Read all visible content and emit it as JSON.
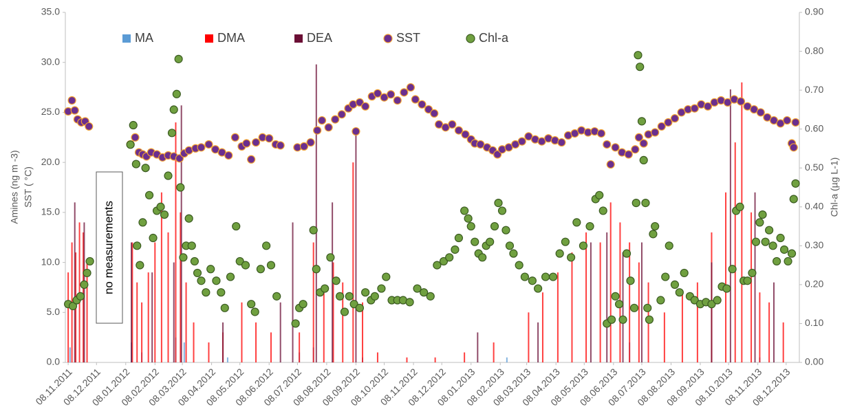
{
  "chart_data": {
    "type": "combo",
    "y_label": [
      "Amines (ng m -3)",
      "SST ( °C)"
    ],
    "y2_label": "Chl-a (µg L-1)",
    "annotation": "no measurements",
    "xlim": [
      "05.11.2011",
      "22.12.2013"
    ],
    "xticks": [
      "08.11.2011",
      "08.12.2011",
      "08.01.2012",
      "08.02.2012",
      "08.03.2012",
      "08.04.2012",
      "08.05.2012",
      "08.06.2012",
      "08.07.2012",
      "08.08.2012",
      "08.09.2012",
      "08.10.2012",
      "08.11.2012",
      "08.12.2012",
      "08.01.2013",
      "08.02.2013",
      "08.03.2013",
      "08.04.2013",
      "08.05.2013",
      "08.06.2013",
      "08.07.2013",
      "08.08.2013",
      "08.09.2013",
      "08.10.2013",
      "08.11.2013",
      "08.12.2013"
    ],
    "ylim": [
      0,
      35
    ],
    "yticks": [
      {
        "value": 0,
        "label": "0.0"
      },
      {
        "value": 5,
        "label": "5.0"
      },
      {
        "value": 10,
        "label": "10.0"
      },
      {
        "value": 15,
        "label": "15.0"
      },
      {
        "value": 20,
        "label": "20.0"
      },
      {
        "value": 25,
        "label": "25.0"
      },
      {
        "value": 30,
        "label": "30.0"
      },
      {
        "value": 35,
        "label": "35.0"
      }
    ],
    "y2lim": [
      0,
      0.9
    ],
    "y2ticks": [
      {
        "value": 0,
        "label": "0.00"
      },
      {
        "value": 0.1,
        "label": "0.10"
      },
      {
        "value": 0.2,
        "label": "0.20"
      },
      {
        "value": 0.3,
        "label": "0.30"
      },
      {
        "value": 0.4,
        "label": "0.40"
      },
      {
        "value": 0.5,
        "label": "0.50"
      },
      {
        "value": 0.6,
        "label": "0.60"
      },
      {
        "value": 0.7,
        "label": "0.70"
      },
      {
        "value": 0.8,
        "label": "0.80"
      },
      {
        "value": 0.9,
        "label": "0.90"
      }
    ],
    "series": [
      {
        "name": "MA",
        "type": "bar",
        "color": "#5b9bd5",
        "x": [
          "10.11.2011",
          "14.01.2012",
          "25.01.2012",
          "01.03.2012",
          "10.03.2012",
          "25.04.2012",
          "10.07.2012",
          "25.07.2012",
          "15.09.2012",
          "15.02.2013",
          "25.06.2013",
          "10.11.2013"
        ],
        "values": [
          1.5,
          2,
          1,
          2.5,
          2,
          0.5,
          1,
          1.5,
          0.5,
          0.5,
          2,
          0.5
        ]
      },
      {
        "name": "DMA",
        "type": "bar",
        "color": "#ff0000",
        "x": [
          "08.11.2011",
          "12.11.2011",
          "16.11.2011",
          "20.11.2011",
          "24.11.2011",
          "28.11.2011",
          "15.01.2012",
          "20.01.2012",
          "25.01.2012",
          "01.02.2012",
          "08.02.2012",
          "15.02.2012",
          "22.02.2012",
          "01.03.2012",
          "06.03.2012",
          "12.03.2012",
          "20.03.2012",
          "05.04.2012",
          "20.04.2012",
          "10.05.2012",
          "25.05.2012",
          "10.06.2012",
          "10.07.2012",
          "25.07.2012",
          "05.08.2012",
          "15.08.2012",
          "25.08.2012",
          "05.09.2012",
          "15.09.2012",
          "01.10.2012",
          "01.11.2012",
          "01.12.2012",
          "01.01.2013",
          "01.02.2013",
          "10.03.2013",
          "25.03.2013",
          "10.04.2013",
          "25.04.2013",
          "10.05.2013",
          "25.05.2013",
          "05.06.2013",
          "15.06.2013",
          "25.06.2013",
          "05.07.2013",
          "15.07.2013",
          "01.08.2013",
          "20.08.2013",
          "05.09.2013",
          "20.09.2013",
          "05.10.2013",
          "15.10.2013",
          "22.10.2013",
          "01.11.2013",
          "10.11.2013",
          "20.11.2013",
          "05.12.2013"
        ],
        "values": [
          9,
          12,
          11,
          14,
          13,
          10,
          12,
          8,
          6,
          9,
          12,
          17,
          13,
          24,
          15,
          8,
          4,
          2,
          3,
          6,
          4,
          3,
          3,
          12,
          7,
          10,
          8,
          20,
          6,
          1,
          0.5,
          0.5,
          1,
          2,
          5,
          7,
          9,
          11,
          13,
          12,
          16,
          14,
          12,
          10,
          8,
          5,
          7,
          8,
          13,
          17,
          22,
          28,
          15,
          7,
          6,
          4
        ]
      },
      {
        "name": "DEA",
        "type": "bar",
        "color": "#6b0f35",
        "x": [
          "15.11.2011",
          "25.11.2011",
          "14.01.2012",
          "05.02.2012",
          "28.02.2012",
          "07.03.2012",
          "20.04.2012",
          "20.06.2012",
          "03.07.2012",
          "28.07.2012",
          "14.08.2012",
          "08.09.2012",
          "15.01.2013",
          "20.03.2013",
          "15.05.2013",
          "01.06.2013",
          "18.06.2013",
          "08.07.2013",
          "20.09.2013",
          "10.10.2013",
          "05.11.2013",
          "25.11.2013"
        ],
        "values": [
          16,
          14,
          12,
          9,
          10,
          25.7,
          4,
          6,
          14,
          29.8,
          16,
          23.5,
          3,
          4,
          12,
          13,
          11,
          12,
          10,
          27.3,
          17,
          8
        ]
      },
      {
        "name": "SST",
        "type": "scatter",
        "color": "#6b2f8e",
        "edge": "#f0a030",
        "x": [
          "08.11.2011",
          "12.11.2011",
          "15.11.2011",
          "18.11.2011",
          "22.11.2011",
          "26.11.2011",
          "30.11.2011",
          "13.01.2012",
          "18.01.2012",
          "22.01.2012",
          "26.01.2012",
          "30.01.2012",
          "04.02.2012",
          "10.02.2012",
          "16.02.2012",
          "22.02.2012",
          "28.02.2012",
          "05.03.2012",
          "10.03.2012",
          "15.03.2012",
          "22.03.2012",
          "28.03.2012",
          "05.04.2012",
          "12.04.2012",
          "19.04.2012",
          "26.04.2012",
          "03.05.2012",
          "10.05.2012",
          "15.05.2012",
          "20.05.2012",
          "25.05.2012",
          "01.06.2012",
          "08.06.2012",
          "15.06.2012",
          "20.06.2012",
          "08.07.2012",
          "15.07.2012",
          "22.07.2012",
          "29.07.2012",
          "03.08.2012",
          "10.08.2012",
          "17.08.2012",
          "24.08.2012",
          "31.08.2012",
          "05.09.2012",
          "08.09.2012",
          "12.09.2012",
          "18.09.2012",
          "25.09.2012",
          "01.10.2012",
          "08.10.2012",
          "15.10.2012",
          "22.10.2012",
          "29.10.2012",
          "05.11.2012",
          "10.11.2012",
          "17.11.2012",
          "24.11.2012",
          "30.11.2012",
          "05.12.2012",
          "12.12.2012",
          "19.12.2012",
          "26.12.2012",
          "02.01.2013",
          "08.01.2013",
          "12.01.2013",
          "18.01.2013",
          "25.01.2013",
          "31.01.2013",
          "05.02.2013",
          "10.02.2013",
          "17.02.2013",
          "24.02.2013",
          "03.03.2013",
          "10.03.2013",
          "17.03.2013",
          "24.03.2013",
          "31.03.2013",
          "07.04.2013",
          "14.04.2013",
          "21.04.2013",
          "28.04.2013",
          "05.05.2013",
          "12.05.2013",
          "19.05.2013",
          "26.05.2013",
          "01.06.2013",
          "05.06.2013",
          "10.06.2013",
          "17.06.2013",
          "24.06.2013",
          "01.07.2013",
          "05.07.2013",
          "10.07.2013",
          "15.07.2013",
          "22.07.2013",
          "29.07.2013",
          "05.08.2013",
          "12.08.2013",
          "19.08.2013",
          "26.08.2013",
          "02.09.2013",
          "09.09.2013",
          "16.09.2013",
          "23.09.2013",
          "30.09.2013",
          "07.10.2013",
          "14.10.2013",
          "21.10.2013",
          "28.10.2013",
          "04.11.2013",
          "11.11.2013",
          "18.11.2013",
          "25.11.2013",
          "02.12.2013",
          "09.12.2013",
          "14.12.2013",
          "16.12.2013",
          "18.12.2013"
        ],
        "values": [
          25.1,
          26.2,
          25.2,
          24.3,
          24.0,
          24.1,
          23.6,
          21.8,
          22.5,
          21.0,
          20.8,
          20.6,
          21.0,
          20.8,
          20.5,
          20.7,
          20.6,
          20.4,
          20.9,
          21.2,
          21.4,
          21.5,
          21.8,
          21.3,
          21.0,
          20.7,
          22.5,
          21.6,
          21.9,
          20.3,
          22.0,
          22.5,
          22.4,
          21.8,
          21.7,
          21.5,
          21.6,
          22.0,
          23.2,
          24.2,
          23.5,
          24.3,
          24.8,
          25.4,
          25.8,
          23.1,
          26.0,
          25.6,
          26.6,
          26.9,
          26.5,
          26.8,
          26.2,
          27.0,
          27.5,
          26.3,
          25.8,
          25.3,
          24.9,
          23.8,
          23.5,
          23.8,
          23.2,
          22.8,
          22.3,
          21.9,
          21.8,
          21.5,
          21.2,
          20.8,
          21.3,
          21.5,
          21.8,
          22.1,
          22.6,
          22.3,
          22.1,
          22.4,
          22.2,
          22.0,
          22.7,
          22.9,
          23.2,
          23.0,
          23.1,
          22.9,
          21.8,
          19.8,
          21.5,
          21.0,
          20.8,
          21.3,
          22.5,
          21.9,
          22.8,
          23.0,
          23.6,
          24.0,
          24.4,
          25.0,
          25.3,
          25.4,
          25.8,
          25.6,
          26.0,
          26.2,
          26.0,
          26.3,
          26.1,
          25.6,
          25.3,
          25.0,
          24.5,
          24.2,
          23.9,
          24.2,
          21.9,
          21.5,
          24.0
        ]
      },
      {
        "name": "Chl-a",
        "type": "scatter",
        "axis": "y2",
        "color": "#70a040",
        "edge": "#3a5a20",
        "x": [
          "08.11.2011",
          "13.11.2011",
          "17.11.2011",
          "21.11.2011",
          "25.11.2011",
          "28.11.2011",
          "01.12.2011",
          "13.01.2012",
          "16.01.2012",
          "19.01.2012",
          "20.01.2012",
          "23.01.2012",
          "26.01.2012",
          "29.01.2012",
          "02.02.2012",
          "06.02.2012",
          "10.02.2012",
          "14.02.2012",
          "18.02.2012",
          "22.02.2012",
          "26.02.2012",
          "28.02.2012",
          "02.03.2012",
          "04.03.2012",
          "06.03.2012",
          "09.03.2012",
          "12.03.2012",
          "15.03.2012",
          "18.03.2012",
          "21.03.2012",
          "24.03.2012",
          "28.03.2012",
          "02.04.2012",
          "07.04.2012",
          "13.04.2012",
          "18.04.2012",
          "22.04.2012",
          "28.04.2012",
          "04.05.2012",
          "08.05.2012",
          "14.05.2012",
          "20.05.2012",
          "24.05.2012",
          "30.05.2012",
          "05.06.2012",
          "10.06.2012",
          "16.06.2012",
          "06.07.2012",
          "10.07.2012",
          "14.07.2012",
          "25.07.2012",
          "28.07.2012",
          "01.08.2012",
          "06.08.2012",
          "12.08.2012",
          "18.08.2012",
          "22.08.2012",
          "27.08.2012",
          "01.09.2012",
          "06.09.2012",
          "12.09.2012",
          "18.09.2012",
          "24.09.2012",
          "28.09.2012",
          "05.10.2012",
          "10.10.2012",
          "16.10.2012",
          "22.10.2012",
          "28.10.2012",
          "04.11.2012",
          "12.11.2012",
          "19.11.2012",
          "26.11.2012",
          "03.12.2012",
          "10.12.2012",
          "16.12.2012",
          "22.12.2012",
          "26.12.2012",
          "01.01.2013",
          "05.01.2013",
          "08.01.2013",
          "12.01.2013",
          "16.01.2013",
          "20.01.2013",
          "24.01.2013",
          "28.01.2013",
          "02.02.2013",
          "06.02.2013",
          "10.02.2013",
          "14.02.2013",
          "18.02.2013",
          "22.02.2013",
          "28.02.2013",
          "06.03.2013",
          "14.03.2013",
          "20.03.2013",
          "28.03.2013",
          "05.04.2013",
          "12.04.2013",
          "18.04.2013",
          "24.04.2013",
          "30.04.2013",
          "07.05.2013",
          "14.05.2013",
          "20.05.2013",
          "24.05.2013",
          "28.05.2013",
          "01.06.2013",
          "06.06.2013",
          "10.06.2013",
          "14.06.2013",
          "18.06.2013",
          "22.06.2013",
          "26.06.2013",
          "30.06.2013",
          "02.07.2013",
          "04.07.2013",
          "06.07.2013",
          "08.07.2013",
          "10.07.2013",
          "12.07.2013",
          "14.07.2013",
          "16.07.2013",
          "20.07.2013",
          "22.07.2013",
          "28.07.2013",
          "02.08.2013",
          "06.08.2013",
          "12.08.2013",
          "17.08.2013",
          "22.08.2013",
          "28.08.2013",
          "02.09.2013",
          "08.09.2013",
          "14.09.2013",
          "20.09.2013",
          "26.09.2013",
          "01.10.2013",
          "06.10.2013",
          "12.10.2013",
          "16.10.2013",
          "20.10.2013",
          "24.10.2013",
          "28.10.2013",
          "02.11.2013",
          "06.11.2013",
          "10.11.2013",
          "13.11.2013",
          "16.11.2013",
          "20.11.2013",
          "24.11.2013",
          "28.11.2013",
          "02.12.2013",
          "06.12.2013",
          "10.12.2013",
          "14.12.2013",
          "16.12.2013",
          "18.12.2013"
        ],
        "values": [
          0.15,
          0.145,
          0.16,
          0.17,
          0.2,
          0.23,
          0.26,
          0.56,
          0.61,
          0.51,
          0.3,
          0.25,
          0.36,
          0.5,
          0.43,
          0.32,
          0.39,
          0.4,
          0.38,
          0.48,
          0.59,
          0.65,
          0.69,
          0.78,
          0.45,
          0.27,
          0.3,
          0.37,
          0.3,
          0.26,
          0.23,
          0.21,
          0.18,
          0.24,
          0.21,
          0.18,
          0.14,
          0.22,
          0.35,
          0.26,
          0.25,
          0.15,
          0.13,
          0.24,
          0.3,
          0.25,
          0.17,
          0.1,
          0.14,
          0.15,
          0.34,
          0.24,
          0.18,
          0.19,
          0.27,
          0.21,
          0.17,
          0.13,
          0.17,
          0.15,
          0.14,
          0.18,
          0.16,
          0.17,
          0.19,
          0.22,
          0.16,
          0.16,
          0.16,
          0.155,
          0.19,
          0.18,
          0.17,
          0.25,
          0.26,
          0.27,
          0.29,
          0.32,
          0.39,
          0.37,
          0.35,
          0.31,
          0.28,
          0.27,
          0.3,
          0.31,
          0.35,
          0.41,
          0.39,
          0.34,
          0.3,
          0.28,
          0.25,
          0.22,
          0.21,
          0.19,
          0.22,
          0.22,
          0.28,
          0.31,
          0.27,
          0.36,
          0.3,
          0.35,
          0.42,
          0.43,
          0.39,
          0.1,
          0.11,
          0.17,
          0.15,
          0.11,
          0.28,
          0.21,
          0.14,
          0.41,
          0.79,
          0.76,
          0.62,
          0.52,
          0.41,
          0.14,
          0.11,
          0.33,
          0.35,
          0.16,
          0.22,
          0.3,
          0.2,
          0.18,
          0.23,
          0.17,
          0.16,
          0.15,
          0.155,
          0.15,
          0.16,
          0.195,
          0.19,
          0.24,
          0.39,
          0.4,
          0.21,
          0.21,
          0.23,
          0.31,
          0.36,
          0.38,
          0.31,
          0.34,
          0.3,
          0.26,
          0.32,
          0.29,
          0.26,
          0.28,
          0.42,
          0.46
        ]
      }
    ]
  }
}
